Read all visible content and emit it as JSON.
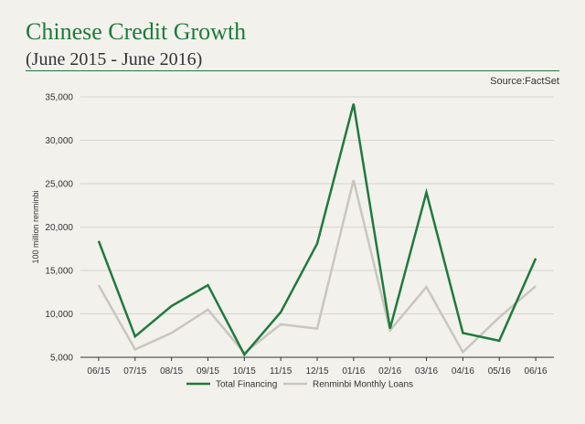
{
  "header": {
    "title": "Chinese Credit Growth",
    "subtitle": "(June 2015 - June 2016)",
    "source": "Source:FactSet"
  },
  "colors": {
    "total_financing": "#1f7a3c",
    "renminbi_loans": "#c9c5bf",
    "title": "#1f7a3c",
    "background": "#f2f1ec"
  },
  "chart_data": {
    "type": "line",
    "title": "Chinese Credit Growth",
    "subtitle": "(June 2015 - June 2016)",
    "xlabel": "",
    "ylabel": "100 million renminbi",
    "categories": [
      "06/15",
      "07/15",
      "08/15",
      "09/15",
      "10/15",
      "11/15",
      "12/15",
      "01/16",
      "02/16",
      "03/16",
      "04/16",
      "05/16",
      "06/16"
    ],
    "yticks": [
      "35,000",
      "30,000",
      "25,000",
      "20,000",
      "15,000",
      "10,000",
      "5,000"
    ],
    "ylim": [
      5000,
      35000
    ],
    "grid": "horizontal",
    "legend_position": "bottom",
    "series": [
      {
        "name": "Total Financing",
        "values": [
          18400,
          7400,
          10900,
          13300,
          5300,
          10200,
          18100,
          34200,
          8300,
          24000,
          7800,
          6900,
          16400
        ]
      },
      {
        "name": "Renminbi Monthly Loans",
        "values": [
          13300,
          5900,
          7800,
          10500,
          5500,
          8800,
          8300,
          25400,
          8100,
          13100,
          5600,
          9600,
          13200
        ]
      }
    ]
  }
}
